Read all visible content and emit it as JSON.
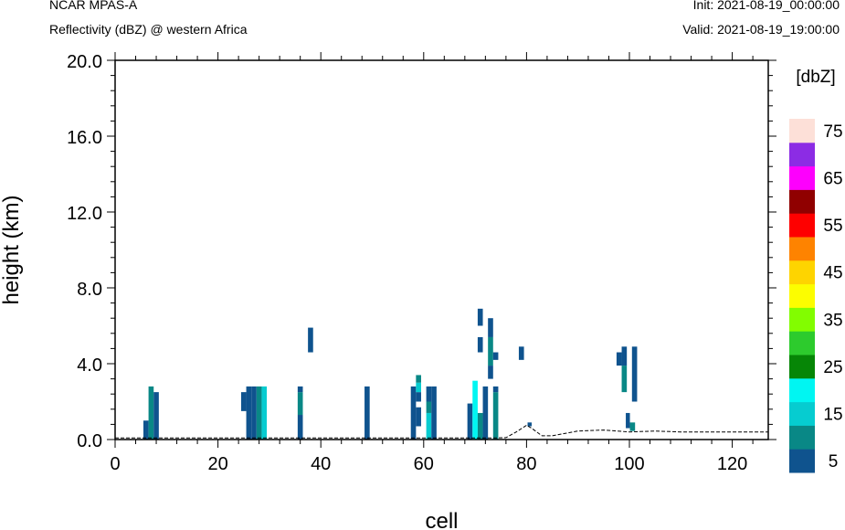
{
  "header": {
    "model": "NCAR MPAS-A",
    "field": "Reflectivity (dBZ) @ western Africa",
    "init": "Init: 2021-08-19_00:00:00",
    "valid": "Valid: 2021-08-19_19:00:00"
  },
  "chart_data": {
    "type": "heatmap",
    "xlabel": "cell",
    "ylabel": "height (km)",
    "xlim": [
      0,
      127
    ],
    "ylim": [
      0,
      20
    ],
    "x_ticks": [
      0,
      20,
      40,
      60,
      80,
      100,
      120
    ],
    "x_tick_labels": [
      "0",
      "20",
      "40",
      "60",
      "80",
      "100",
      "120"
    ],
    "y_ticks": [
      0,
      4,
      8,
      12,
      16,
      20
    ],
    "y_tick_labels": [
      "0.0",
      "4.0",
      "8.0",
      "12.0",
      "16.0",
      "20.0"
    ],
    "colorbar": {
      "unit": "[dbZ]",
      "levels": [
        5,
        10,
        15,
        20,
        25,
        30,
        35,
        40,
        45,
        50,
        55,
        60,
        65,
        70,
        75
      ],
      "labels": [
        "5",
        "15",
        "25",
        "35",
        "45",
        "55",
        "65",
        "75"
      ],
      "colors": [
        "#0f538e",
        "#098886",
        "#06ccd0",
        "#00f6f2",
        "#068606",
        "#2dcb2d",
        "#82fd00",
        "#fcfd00",
        "#fed400",
        "#fe8300",
        "#fe0000",
        "#900000",
        "#fd00fd",
        "#8c2ce4",
        "#fde0d8"
      ]
    },
    "cells": [
      {
        "x": 5.5,
        "w": 1,
        "y0": 0.0,
        "y1": 1.0,
        "dbz": 5
      },
      {
        "x": 6.5,
        "w": 1,
        "y0": 0.0,
        "y1": 2.8,
        "dbz": 10
      },
      {
        "x": 7.5,
        "w": 1,
        "y0": 0.0,
        "y1": 2.5,
        "dbz": 5
      },
      {
        "x": 24.5,
        "w": 1,
        "y0": 1.5,
        "y1": 2.5,
        "dbz": 5
      },
      {
        "x": 25.5,
        "w": 1,
        "y0": 0.0,
        "y1": 2.8,
        "dbz": 5
      },
      {
        "x": 26.5,
        "w": 1,
        "y0": 0.0,
        "y1": 2.8,
        "dbz": 5
      },
      {
        "x": 27.5,
        "w": 1,
        "y0": 0.0,
        "y1": 2.8,
        "dbz": 10
      },
      {
        "x": 28.5,
        "w": 1,
        "y0": 0.0,
        "y1": 2.8,
        "dbz": 15
      },
      {
        "x": 35.5,
        "w": 1,
        "y0": 0.0,
        "y1": 1.3,
        "dbz": 5
      },
      {
        "x": 35.5,
        "w": 1,
        "y0": 1.3,
        "y1": 2.5,
        "dbz": 10
      },
      {
        "x": 35.5,
        "w": 1,
        "y0": 2.5,
        "y1": 2.8,
        "dbz": 5
      },
      {
        "x": 37.5,
        "w": 1,
        "y0": 4.6,
        "y1": 5.9,
        "dbz": 5
      },
      {
        "x": 48.5,
        "w": 1,
        "y0": 0.0,
        "y1": 2.8,
        "dbz": 5
      },
      {
        "x": 57.5,
        "w": 1,
        "y0": 0.0,
        "y1": 2.8,
        "dbz": 5
      },
      {
        "x": 58.5,
        "w": 1,
        "y0": 0.7,
        "y1": 1.7,
        "dbz": 5
      },
      {
        "x": 58.5,
        "w": 1,
        "y0": 2.0,
        "y1": 2.5,
        "dbz": 5
      },
      {
        "x": 58.5,
        "w": 1,
        "y0": 2.5,
        "y1": 3.0,
        "dbz": 15
      },
      {
        "x": 58.5,
        "w": 1,
        "y0": 3.0,
        "y1": 3.4,
        "dbz": 10
      },
      {
        "x": 60.5,
        "w": 1,
        "y0": 0.0,
        "y1": 1.4,
        "dbz": 15
      },
      {
        "x": 60.5,
        "w": 1,
        "y0": 1.4,
        "y1": 2.0,
        "dbz": 10
      },
      {
        "x": 60.5,
        "w": 1,
        "y0": 2.0,
        "y1": 2.8,
        "dbz": 5
      },
      {
        "x": 61.5,
        "w": 1,
        "y0": 0.0,
        "y1": 2.8,
        "dbz": 5
      },
      {
        "x": 68.5,
        "w": 1,
        "y0": 0.0,
        "y1": 1.9,
        "dbz": 5
      },
      {
        "x": 69.5,
        "w": 1,
        "y0": 0.0,
        "y1": 3.1,
        "dbz": 20
      },
      {
        "x": 70.5,
        "w": 1,
        "y0": 0.0,
        "y1": 1.4,
        "dbz": 10
      },
      {
        "x": 70.5,
        "w": 1,
        "y0": 4.6,
        "y1": 5.4,
        "dbz": 5
      },
      {
        "x": 70.5,
        "w": 1,
        "y0": 6.0,
        "y1": 6.9,
        "dbz": 5
      },
      {
        "x": 71.5,
        "w": 1,
        "y0": 0.0,
        "y1": 2.8,
        "dbz": 5
      },
      {
        "x": 72.5,
        "w": 1,
        "y0": 3.2,
        "y1": 3.9,
        "dbz": 5
      },
      {
        "x": 72.5,
        "w": 1,
        "y0": 3.9,
        "y1": 5.4,
        "dbz": 10
      },
      {
        "x": 72.5,
        "w": 1,
        "y0": 5.4,
        "y1": 6.4,
        "dbz": 5
      },
      {
        "x": 73.5,
        "w": 1,
        "y0": 0.0,
        "y1": 2.5,
        "dbz": 10
      },
      {
        "x": 73.5,
        "w": 1,
        "y0": 2.5,
        "y1": 2.8,
        "dbz": 5
      },
      {
        "x": 73.5,
        "w": 1,
        "y0": 4.2,
        "y1": 4.6,
        "dbz": 5
      },
      {
        "x": 78.5,
        "w": 1,
        "y0": 4.2,
        "y1": 4.9,
        "dbz": 5
      },
      {
        "x": 80.2,
        "w": 0.8,
        "y0": 0.7,
        "y1": 0.9,
        "dbz": 5
      },
      {
        "x": 97.5,
        "w": 1,
        "y0": 3.9,
        "y1": 4.6,
        "dbz": 5
      },
      {
        "x": 98.5,
        "w": 1,
        "y0": 2.5,
        "y1": 3.9,
        "dbz": 10
      },
      {
        "x": 98.5,
        "w": 1,
        "y0": 3.9,
        "y1": 4.9,
        "dbz": 5
      },
      {
        "x": 99.3,
        "w": 0.8,
        "y0": 0.6,
        "y1": 1.4,
        "dbz": 5
      },
      {
        "x": 100.1,
        "w": 1,
        "y0": 0.45,
        "y1": 0.9,
        "dbz": 10
      },
      {
        "x": 100.5,
        "w": 1,
        "y0": 2.0,
        "y1": 4.9,
        "dbz": 5
      }
    ],
    "terrain": {
      "x": [
        0,
        5,
        10,
        20,
        30,
        40,
        50,
        60,
        70,
        74,
        76,
        78,
        80,
        81,
        83,
        85,
        87,
        90,
        95,
        100,
        105,
        110,
        115,
        120,
        127
      ],
      "y": [
        0.08,
        0.08,
        0.08,
        0.08,
        0.08,
        0.08,
        0.08,
        0.08,
        0.08,
        0.08,
        0.1,
        0.4,
        0.75,
        0.6,
        0.2,
        0.2,
        0.3,
        0.45,
        0.5,
        0.4,
        0.45,
        0.4,
        0.4,
        0.4,
        0.4
      ]
    }
  }
}
